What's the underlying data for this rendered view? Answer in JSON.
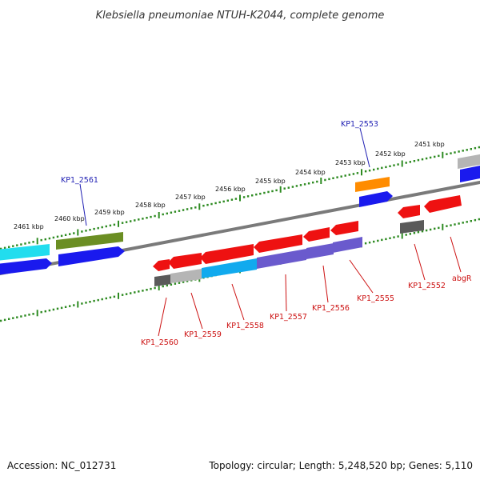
{
  "title": "Klebsiella pneumoniae NTUH-K2044, complete genome",
  "footer": {
    "accession": "Accession: NC_012731",
    "summary": "Topology: circular; Length: 5,248,520 bp; Genes: 5,110"
  },
  "ruler_labels": [
    "2461 kbp",
    "2460 kbp",
    "2459 kbp",
    "2458 kbp",
    "2457 kbp",
    "2456 kbp",
    "2455 kbp",
    "2454 kbp",
    "2453 kbp",
    "2452 kbp",
    "2451 kbp"
  ],
  "gene_labels_top": [
    "KP1_2561",
    "KP1_2553"
  ],
  "gene_labels_bottom": [
    "KP1_2560",
    "KP1_2559",
    "KP1_2558",
    "KP1_2557",
    "KP1_2556",
    "KP1_2555",
    "KP1_2552",
    "abgR"
  ],
  "colors": {
    "ruler": "#2e8b22",
    "backbone": "#7a7a7a",
    "top_label": "#1f1fb3",
    "bottom_label": "#cc1111",
    "gene_red": "#ee1111",
    "gene_blue": "#1a1aee",
    "gene_cyan": "#22ddee",
    "gene_olive": "#6b8e23",
    "gene_orange": "#ff8c00",
    "gene_lightblue": "#11aaee",
    "gene_purple": "#6a5acd",
    "gene_gray": "#b5b5b5",
    "gene_darkgray": "#5a5a5a"
  }
}
